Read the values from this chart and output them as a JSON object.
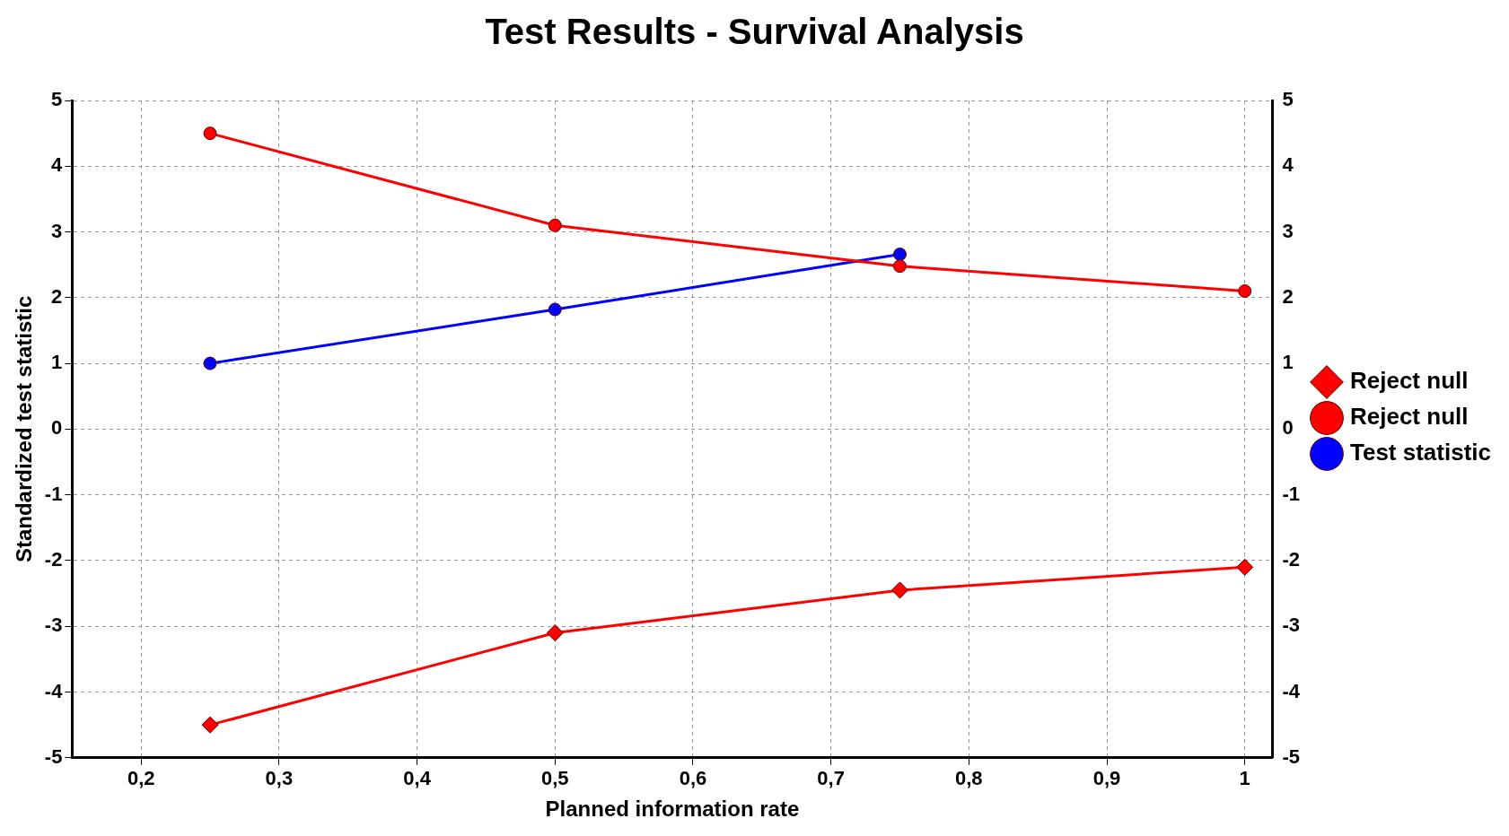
{
  "chart_data": {
    "type": "line",
    "title": "Test Results - Survival Analysis",
    "xlabel": "Planned information rate",
    "ylabel": "Standardized test statistic",
    "x": [
      0.25,
      0.5,
      0.75,
      1
    ],
    "series": [
      {
        "name": "Reject null",
        "color": "#ff0000",
        "marker": "diamond",
        "values": [
          -4.5,
          -3.1,
          -2.45,
          -2.1
        ]
      },
      {
        "name": "Reject null",
        "color": "#ff0000",
        "marker": "circle",
        "values": [
          4.5,
          3.1,
          2.48,
          2.1
        ]
      },
      {
        "name": "Test statistic",
        "color": "#0000ff",
        "marker": "circle",
        "values": [
          1.0,
          1.82,
          2.66,
          null
        ]
      }
    ],
    "xlim": [
      0.15,
      1.02
    ],
    "xticks": [
      {
        "value": 0.2,
        "label": "0,2"
      },
      {
        "value": 0.3,
        "label": "0,3"
      },
      {
        "value": 0.4,
        "label": "0,4"
      },
      {
        "value": 0.5,
        "label": "0,5"
      },
      {
        "value": 0.6,
        "label": "0,6"
      },
      {
        "value": 0.7,
        "label": "0,7"
      },
      {
        "value": 0.8,
        "label": "0,8"
      },
      {
        "value": 0.9,
        "label": "0,9"
      },
      1
    ],
    "ylim": [
      -5,
      5
    ],
    "yticks": [
      -5,
      -4,
      -3,
      -2,
      -1,
      0,
      1,
      2,
      3,
      4,
      5
    ],
    "y2lim": [
      -5,
      5
    ],
    "y2ticks": [
      -5,
      -4,
      -3,
      -2,
      -1,
      0,
      1,
      2,
      3,
      4,
      5
    ],
    "grid": true,
    "legend": "right",
    "line_style": "solid"
  }
}
